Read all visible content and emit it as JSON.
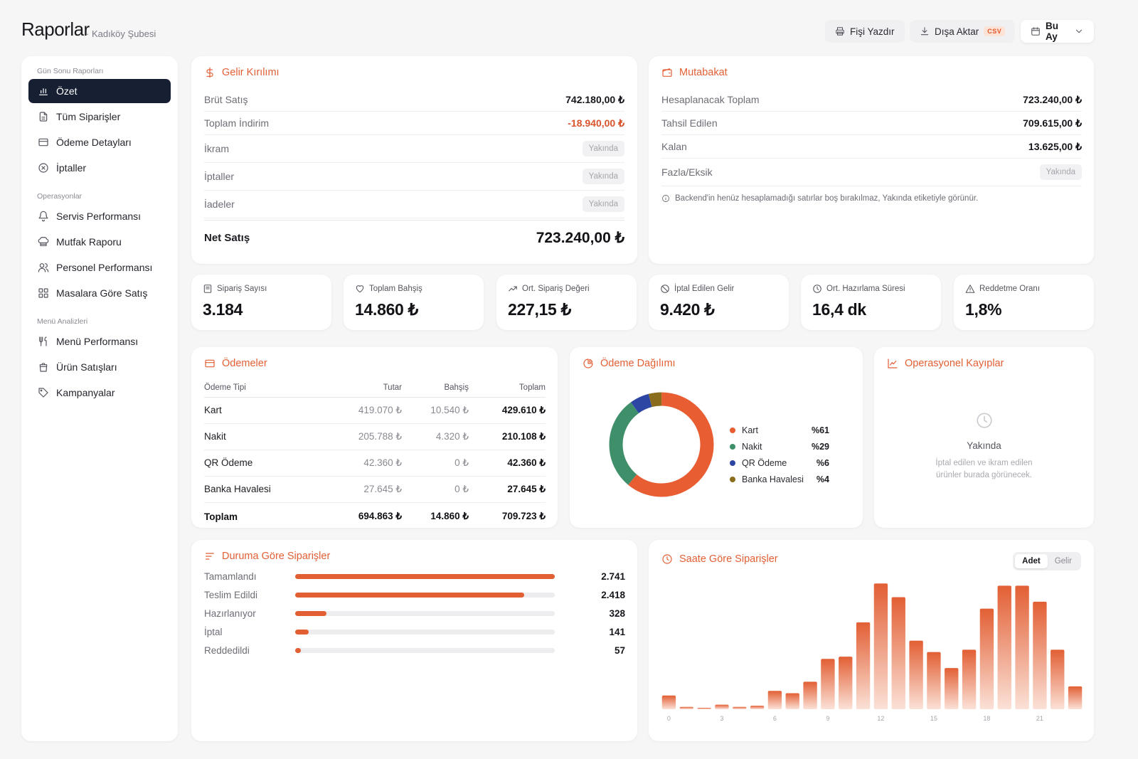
{
  "header": {
    "title": "Raporlar",
    "subtitle": "· Kadıköy Şubesi",
    "print_label": "Fişi Yazdır",
    "export_label": "Dışa Aktar",
    "export_badge": "CSV",
    "period_label": "Bu Ay"
  },
  "sidebar": {
    "sections": [
      {
        "label": "Gün Sonu Raporları",
        "items": [
          {
            "label": "Özet",
            "icon": "bar-chart-icon",
            "active": true
          },
          {
            "label": "Tüm Siparişler",
            "icon": "document-icon"
          },
          {
            "label": "Ödeme Detayları",
            "icon": "credit-card-icon"
          },
          {
            "label": "İptaller",
            "icon": "x-circle-icon"
          }
        ]
      },
      {
        "label": "Operasyonlar",
        "items": [
          {
            "label": "Servis Performansı",
            "icon": "bell-icon"
          },
          {
            "label": "Mutfak Raporu",
            "icon": "chef-hat-icon"
          },
          {
            "label": "Personel Performansı",
            "icon": "users-icon"
          },
          {
            "label": "Masalara Göre Satış",
            "icon": "grid-icon"
          }
        ]
      },
      {
        "label": "Menü Analizleri",
        "items": [
          {
            "label": "Menü Performansı",
            "icon": "utensils-icon"
          },
          {
            "label": "Ürün Satışları",
            "icon": "shopping-bag-icon"
          },
          {
            "label": "Kampanyalar",
            "icon": "tag-icon"
          }
        ]
      }
    ]
  },
  "revenue": {
    "title": "Gelir Kırılımı",
    "rows": [
      {
        "label": "Brüt Satış",
        "value": "742.180,00 ₺"
      },
      {
        "label": "Toplam İndirim",
        "value": "-18.940,00 ₺",
        "negative": true
      },
      {
        "label": "İkram",
        "soon": "Yakında"
      },
      {
        "label": "İptaller",
        "soon": "Yakında"
      },
      {
        "label": "İadeler",
        "soon": "Yakında"
      }
    ],
    "net_label": "Net Satış",
    "net_value": "723.240,00 ₺"
  },
  "reconciliation": {
    "title": "Mutabakat",
    "rows": [
      {
        "label": "Hesaplanacak Toplam",
        "value": "723.240,00 ₺"
      },
      {
        "label": "Tahsil Edilen",
        "value": "709.615,00 ₺"
      },
      {
        "label": "Kalan",
        "value": "13.625,00 ₺"
      },
      {
        "label": "Fazla/Eksik",
        "soon": "Yakında"
      }
    ],
    "note": "Backend'in henüz hesaplamadığı satırlar boş bırakılmaz, Yakında etiketiyle görünür."
  },
  "kpis": [
    {
      "label": "Sipariş Sayısı",
      "value": "3.184",
      "icon": "receipt-icon"
    },
    {
      "label": "Toplam Bahşiş",
      "value": "14.860 ₺",
      "icon": "heart-icon"
    },
    {
      "label": "Ort. Sipariş Değeri",
      "value": "227,15 ₺",
      "icon": "trend-up-icon"
    },
    {
      "label": "İptal Edilen Gelir",
      "value": "9.420 ₺",
      "icon": "ban-icon"
    },
    {
      "label": "Ort. Hazırlama Süresi",
      "value": "16,4 dk",
      "icon": "clock-icon"
    },
    {
      "label": "Reddetme Oranı",
      "value": "1,8%",
      "icon": "warning-icon"
    }
  ],
  "payments": {
    "title": "Ödemeler",
    "columns": [
      "Ödeme Tipi",
      "Tutar",
      "Bahşiş",
      "Toplam"
    ],
    "rows": [
      [
        "Kart",
        "419.070 ₺",
        "10.540 ₺",
        "429.610 ₺"
      ],
      [
        "Nakit",
        "205.788 ₺",
        "4.320 ₺",
        "210.108 ₺"
      ],
      [
        "QR Ödeme",
        "42.360 ₺",
        "0 ₺",
        "42.360 ₺"
      ],
      [
        "Banka Havalesi",
        "27.645 ₺",
        "0 ₺",
        "27.645 ₺"
      ]
    ],
    "total": [
      "Toplam",
      "694.863 ₺",
      "14.860 ₺",
      "709.723 ₺"
    ]
  },
  "distribution": {
    "title": "Ödeme Dağılımı",
    "items": [
      {
        "name": "Kart",
        "pct": "%61",
        "value": 61,
        "color": "#e85d32"
      },
      {
        "name": "Nakit",
        "pct": "%29",
        "value": 29,
        "color": "#3f8f6b"
      },
      {
        "name": "QR Ödeme",
        "pct": "%6",
        "value": 6,
        "color": "#2e46a3"
      },
      {
        "name": "Banka Havalesi",
        "pct": "%4",
        "value": 4,
        "color": "#8a6d1c"
      }
    ]
  },
  "losses": {
    "title": "Operasyonel Kayıplar",
    "soon": "Yakında",
    "text1": "İptal edilen ve ikram edilen",
    "text2": "ürünler burada görünecek."
  },
  "status": {
    "title": "Duruma Göre Siparişler",
    "max": 2741,
    "rows": [
      {
        "label": "Tamamlandı",
        "value": "2.741",
        "n": 2741
      },
      {
        "label": "Teslim Edildi",
        "value": "2.418",
        "n": 2418
      },
      {
        "label": "Hazırlanıyor",
        "value": "328",
        "n": 328
      },
      {
        "label": "İptal",
        "value": "141",
        "n": 141
      },
      {
        "label": "Reddedildi",
        "value": "57",
        "n": 57
      }
    ]
  },
  "hourly": {
    "title": "Saate Göre Siparişler",
    "toggle": [
      "Adet",
      "Gelir"
    ],
    "active": "Adet"
  },
  "chart_data": {
    "type": "bar",
    "title": "Saate Göre Siparişler",
    "categories": [
      0,
      1,
      2,
      3,
      4,
      5,
      6,
      7,
      8,
      9,
      10,
      11,
      12,
      13,
      14,
      15,
      16,
      17,
      18,
      19,
      20,
      21,
      22,
      23
    ],
    "tick_labels": [
      "0",
      "3",
      "6",
      "9",
      "12",
      "15",
      "18",
      "21"
    ],
    "values": [
      6,
      1,
      0.4,
      2,
      1,
      1.5,
      8,
      7,
      12,
      22,
      23,
      38,
      55,
      49,
      30,
      25,
      18,
      26,
      44,
      54,
      54,
      47,
      26,
      10
    ],
    "ylim": [
      0,
      56
    ],
    "grid": false
  }
}
